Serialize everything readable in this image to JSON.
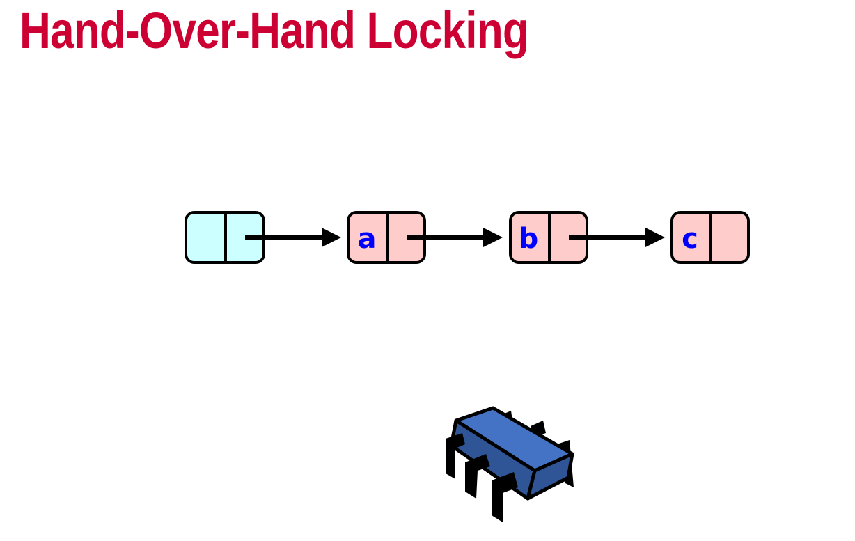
{
  "slide": {
    "title": "Hand-Over-Hand Locking"
  },
  "list": {
    "nodes": [
      {
        "label": "",
        "role": "head"
      },
      {
        "label": "a",
        "role": "item"
      },
      {
        "label": "b",
        "role": "item"
      },
      {
        "label": "c",
        "role": "item"
      }
    ]
  },
  "colors": {
    "title": "#cc0033",
    "head_fill": "#ccffff",
    "item_fill": "#ffcccc",
    "label": "#0000ff",
    "outline": "#000000",
    "chip_top": "#4472c4",
    "chip_side": "#2f5597"
  },
  "icons": {
    "thread": "cpu-chip-icon"
  }
}
